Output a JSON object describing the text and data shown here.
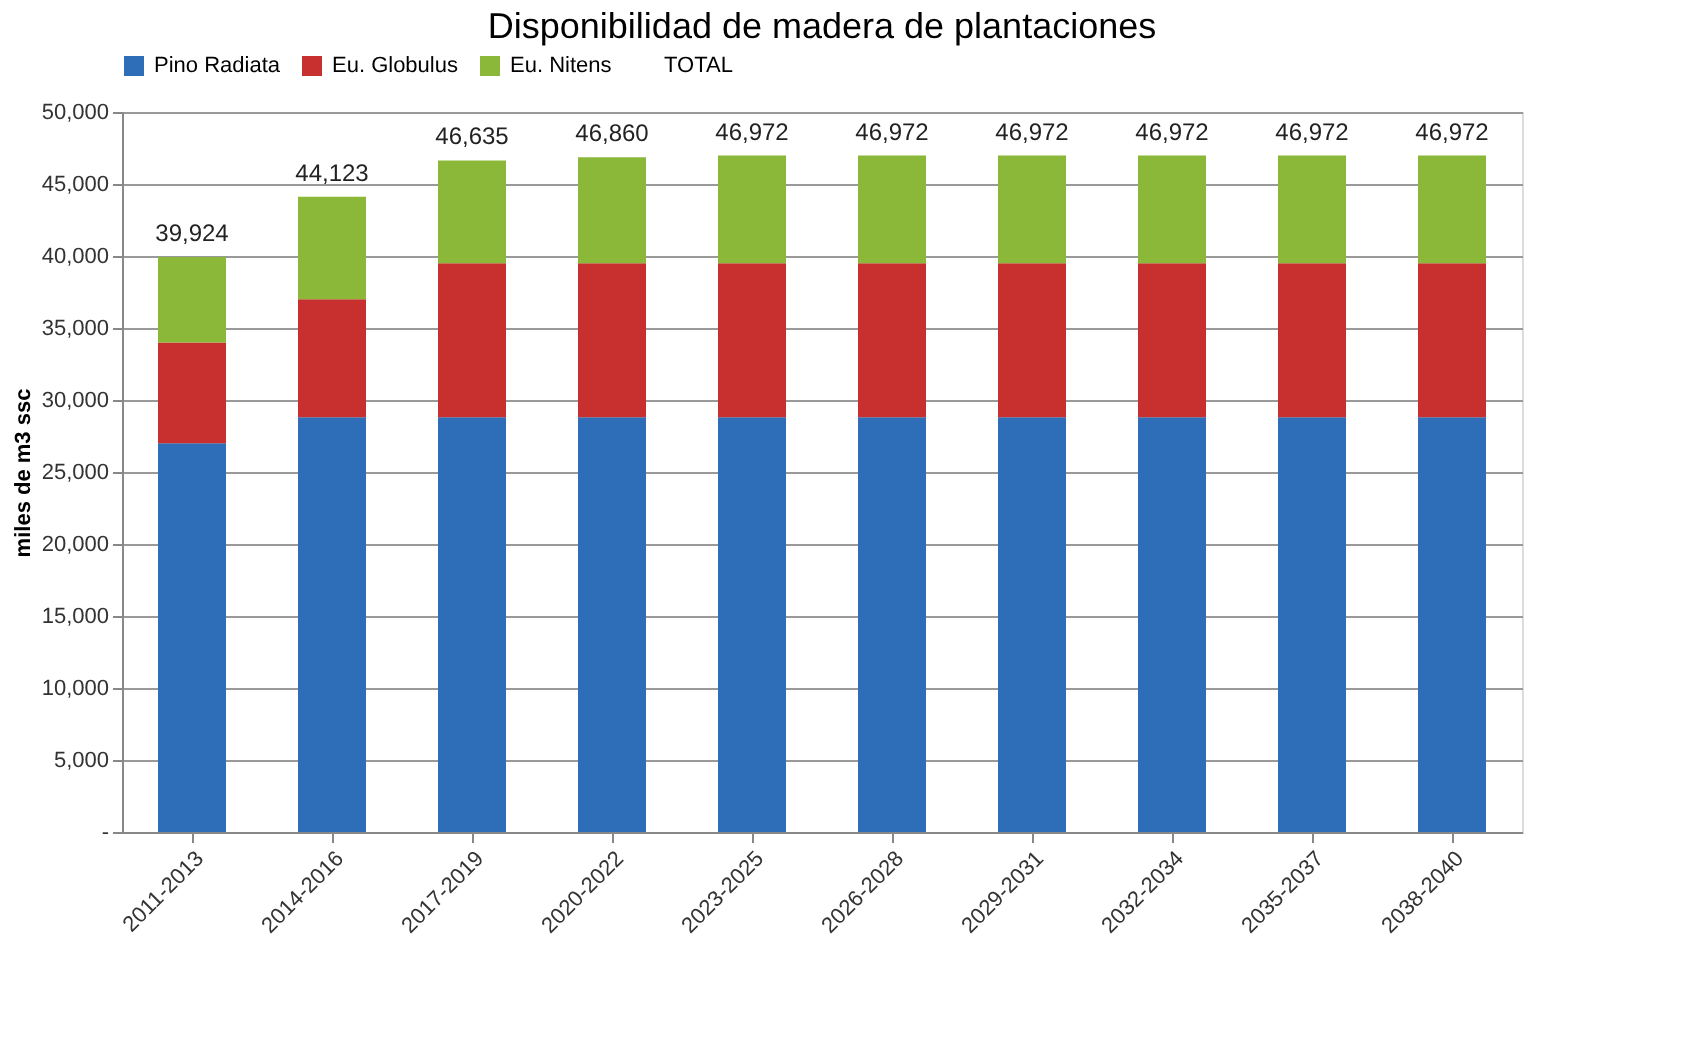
{
  "chart_data": {
    "type": "bar",
    "title": "Disponibilidad de madera de plantaciones",
    "ylabel": "miles de m3 ssc",
    "stacked": true,
    "legend": "top",
    "grid": "y",
    "categories": [
      "2011-2013",
      "2014-2016",
      "2017-2019",
      "2020-2022",
      "2023-2025",
      "2026-2028",
      "2029-2031",
      "2032-2034",
      "2035-2037",
      "2038-2040"
    ],
    "series": [
      {
        "name": "Pino Radiata",
        "color": "#2e6db8",
        "values": [
          27000,
          28800,
          28800,
          28800,
          28800,
          28800,
          28800,
          28800,
          28800,
          28800
        ]
      },
      {
        "name": "Eu. Globulus",
        "color": "#c8302f",
        "values": [
          7000,
          8200,
          10700,
          10700,
          10700,
          10700,
          10700,
          10700,
          10700,
          10700
        ]
      },
      {
        "name": "Eu. Nitens",
        "color": "#8cb83a",
        "values": [
          5924,
          7123,
          7135,
          7360,
          7472,
          7472,
          7472,
          7472,
          7472,
          7472
        ]
      },
      {
        "name": "TOTAL",
        "color": null,
        "values": [
          null,
          null,
          null,
          null,
          null,
          null,
          null,
          null,
          null,
          null
        ]
      }
    ],
    "totals": [
      "39,924",
      "44,123",
      "46,635",
      "46,860",
      "46,972",
      "46,972",
      "46,972",
      "46,972",
      "46,972",
      "46,972"
    ],
    "ylim": [
      0,
      50000
    ],
    "yticks": [
      {
        "value": 0,
        "label": "-"
      },
      {
        "value": 5000,
        "label": "5,000"
      },
      {
        "value": 10000,
        "label": "10,000"
      },
      {
        "value": 15000,
        "label": "15,000"
      },
      {
        "value": 20000,
        "label": "20,000"
      },
      {
        "value": 25000,
        "label": "25,000"
      },
      {
        "value": 30000,
        "label": "30,000"
      },
      {
        "value": 35000,
        "label": "35,000"
      },
      {
        "value": 40000,
        "label": "40,000"
      },
      {
        "value": 45000,
        "label": "45,000"
      },
      {
        "value": 50000,
        "label": "50,000"
      }
    ]
  }
}
